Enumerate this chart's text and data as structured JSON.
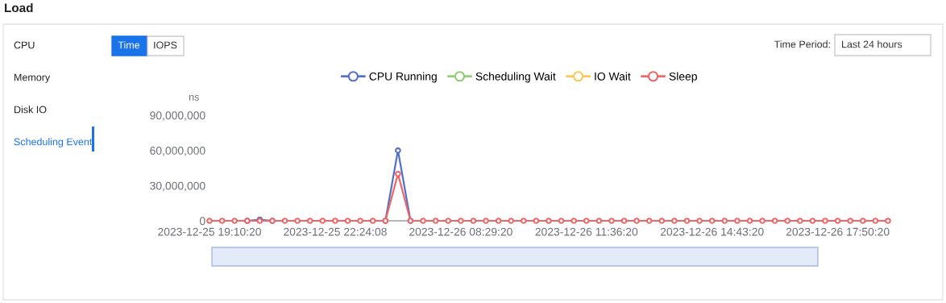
{
  "chart_data": {
    "type": "line",
    "title": "Load",
    "ylabel": "ns",
    "annotations": [
      "CPU",
      "Memory",
      "Disk IO",
      "Scheduling Event",
      "Time",
      "IOPS",
      "Time Period:",
      "Last 24 hours"
    ],
    "categories": [
      "2023-12-25 19:10:20",
      null,
      null,
      null,
      null,
      null,
      null,
      null,
      null,
      null,
      "2023-12-25 22:24:08",
      null,
      null,
      null,
      null,
      null,
      null,
      null,
      null,
      null,
      "2023-12-26 08:29:20",
      null,
      null,
      null,
      null,
      null,
      null,
      null,
      null,
      null,
      "2023-12-26 11:36:20",
      null,
      null,
      null,
      null,
      null,
      null,
      null,
      null,
      null,
      "2023-12-26 14:43:20",
      null,
      null,
      null,
      null,
      null,
      null,
      null,
      null,
      null,
      "2023-12-26 17:50:20",
      null,
      null,
      null,
      null
    ],
    "series": [
      {
        "name": "CPU Running",
        "color": "#5470c6",
        "values": [
          null,
          null,
          null,
          0,
          1000000,
          0,
          null,
          null,
          null,
          null,
          null,
          null,
          null,
          null,
          0,
          60000000,
          0,
          null,
          null,
          null,
          null,
          null,
          null,
          null,
          null,
          null,
          null,
          null,
          null,
          null,
          null,
          null,
          null,
          null,
          null,
          null,
          null,
          null,
          null,
          null,
          null,
          null,
          null,
          null,
          null,
          null,
          null,
          null,
          null,
          null,
          null,
          null,
          null,
          null,
          null
        ]
      },
      {
        "name": "Scheduling Wait",
        "color": "#91cc75",
        "values": [
          null,
          null,
          null,
          null,
          null,
          null,
          null,
          null,
          null,
          null,
          null,
          null,
          null,
          null,
          null,
          null,
          null,
          null,
          null,
          null,
          null,
          null,
          null,
          null,
          null,
          null,
          null,
          null,
          null,
          null,
          null,
          null,
          null,
          null,
          null,
          null,
          null,
          null,
          null,
          null,
          null,
          null,
          null,
          null,
          null,
          null,
          null,
          null,
          null,
          null,
          null,
          null,
          null,
          null,
          null
        ]
      },
      {
        "name": "IO Wait",
        "color": "#fac858",
        "values": [
          null,
          null,
          null,
          null,
          null,
          null,
          null,
          null,
          null,
          null,
          null,
          null,
          null,
          null,
          null,
          null,
          null,
          null,
          null,
          null,
          null,
          null,
          null,
          null,
          null,
          null,
          null,
          null,
          null,
          null,
          null,
          null,
          null,
          null,
          null,
          null,
          null,
          null,
          null,
          null,
          null,
          null,
          null,
          null,
          null,
          null,
          null,
          null,
          null,
          null,
          null,
          null,
          null,
          null,
          null
        ]
      },
      {
        "name": "Sleep",
        "color": "#ee6666",
        "values": [
          0,
          0,
          0,
          0,
          0,
          0,
          0,
          0,
          0,
          0,
          0,
          0,
          0,
          0,
          0,
          40000000,
          0,
          0,
          0,
          0,
          0,
          0,
          0,
          0,
          0,
          0,
          0,
          0,
          0,
          0,
          0,
          0,
          0,
          0,
          0,
          0,
          0,
          0,
          0,
          0,
          0,
          0,
          0,
          0,
          0,
          0,
          0,
          0,
          0,
          0,
          0,
          0,
          0,
          0,
          0
        ]
      }
    ],
    "ylim": [
      0,
      90000000
    ],
    "yticks": [
      {
        "value": 0,
        "label": "0"
      },
      {
        "value": 30000000,
        "label": "30,000,000"
      },
      {
        "value": 60000000,
        "label": "60,000,000"
      },
      {
        "value": 90000000,
        "label": "90,000,000"
      }
    ],
    "grid": false,
    "legend": "top",
    "marker": "circle",
    "line_style": "solid"
  }
}
